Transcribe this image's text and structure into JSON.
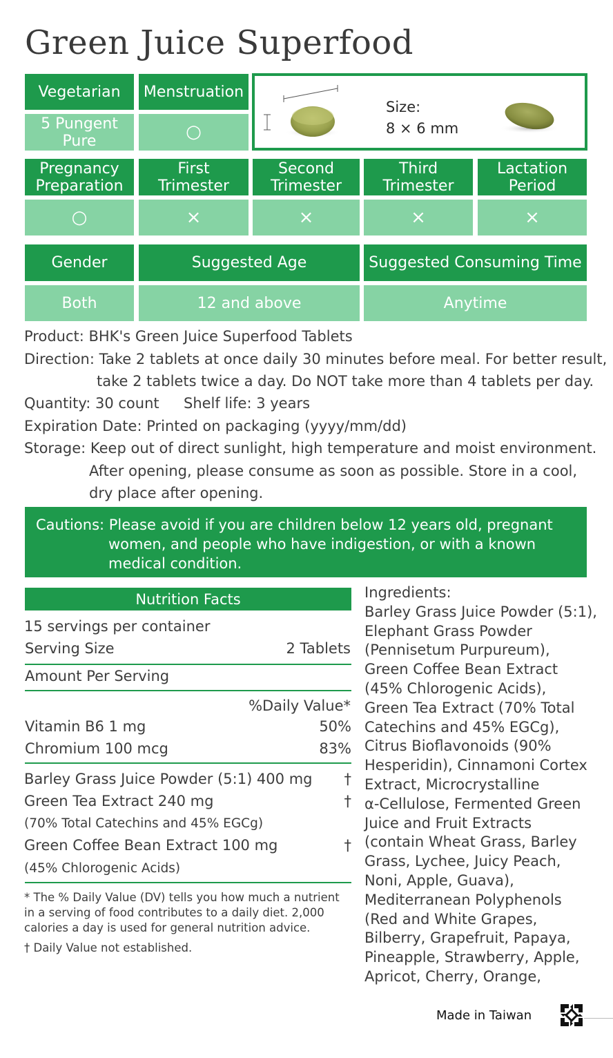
{
  "title": "Green Juice Superfood",
  "top_table": {
    "vegetarian_label": "Vegetarian",
    "vegetarian_value": "5 Pungent Pure",
    "menstruation_label": "Menstruation",
    "menstruation_value": "○"
  },
  "size_box": {
    "label": "Size:",
    "value": "8 × 6 mm"
  },
  "stage_table": {
    "headers": [
      "Pregnancy Preparation",
      "First Trimester",
      "Second Trimester",
      "Third Trimester",
      "Lactation Period"
    ],
    "values": [
      "○",
      "×",
      "×",
      "×",
      "×"
    ]
  },
  "usage_table": {
    "headers": [
      "Gender",
      "Suggested Age",
      "Suggested Consuming Time"
    ],
    "values": [
      "Both",
      "12 and above",
      "Anytime"
    ]
  },
  "info": {
    "product": "Product: BHK's Green Juice Superfood Tablets",
    "direction_1": "Direction: Take 2 tablets at once daily 30 minutes before meal. For better result,",
    "direction_2": "take 2 tablets twice a day. Do NOT take more than 4 tablets per day.",
    "quantity": "Quantity: 30 count",
    "shelf_life": "Shelf life: 3 years",
    "expiration": "Expiration Date: Printed on packaging (yyyy/mm/dd)",
    "storage_1": "Storage: Keep out of direct sunlight, high temperature and moist environment.",
    "storage_2": "After opening, please consume as soon as possible. Store in a cool,",
    "storage_3": "dry place after opening."
  },
  "cautions": {
    "line_1": "Cautions: Please avoid if you are children below 12 years old, pregnant",
    "line_2": "women, and people who have indigestion, or with a known",
    "line_3": "medical condition."
  },
  "nutrition": {
    "header": "Nutrition Facts",
    "servings": "15 servings per container",
    "serving_size_label": "Serving Size",
    "serving_size_value": "2 Tablets",
    "amount_per_serving": "Amount Per Serving",
    "daily_value_header": "%Daily Value*",
    "rows": [
      {
        "name": "Vitamin B6 1 mg",
        "dv": "50%"
      },
      {
        "name": "Chromium 100 mcg",
        "dv": "83%"
      }
    ],
    "extracts": [
      {
        "name": "Barley Grass Juice Powder (5:1) 400 mg",
        "dv": "†"
      },
      {
        "name": "Green Tea Extract 240 mg",
        "dv": "†"
      },
      {
        "name": "(70% Total Catechins and 45% EGCg)",
        "dv": ""
      },
      {
        "name": "Green Coffee Bean Extract 100 mg",
        "dv": "†"
      },
      {
        "name": "(45% Chlorogenic Acids)",
        "dv": ""
      }
    ],
    "footnote_1": "* The % Daily Value (DV) tells you how much a nutrient",
    "footnote_2": "in a serving of food contributes to a daily diet. 2,000",
    "footnote_3": "calories a day is used for general nutrition advice.",
    "footnote_4": "† Daily Value not established."
  },
  "ingredients": {
    "lines": [
      "Ingredients:",
      "Barley Grass Juice Powder (5:1),",
      "Elephant Grass Powder",
      "(Pennisetum Purpureum),",
      "Green Coffee Bean Extract",
      "(45% Chlorogenic Acids),",
      "Green Tea Extract (70% Total",
      "Catechins and 45% EGCg),",
      "Citrus Bioflavonoids (90%",
      "Hesperidin), Cinnamoni Cortex",
      "Extract, Microcrystalline",
      "α-Cellulose, Fermented Green",
      "Juice and Fruit Extracts",
      "(contain Wheat Grass, Barley",
      "Grass, Lychee, Juicy Peach,",
      "Noni, Apple, Guava),",
      "Mediterranean Polyphenols",
      "(Red and White Grapes,",
      "Bilberry, Grapefruit, Papaya,",
      "Pineapple, Strawberry, Apple,",
      "Apricot, Cherry, Orange,"
    ]
  },
  "footer": {
    "made_in": "Made in Taiwan",
    "recycle_icon": "recycle-icon"
  },
  "colors": {
    "dark_green": "#1e9a4c",
    "light_green": "#86d3a4",
    "text": "#3d3d3d"
  }
}
